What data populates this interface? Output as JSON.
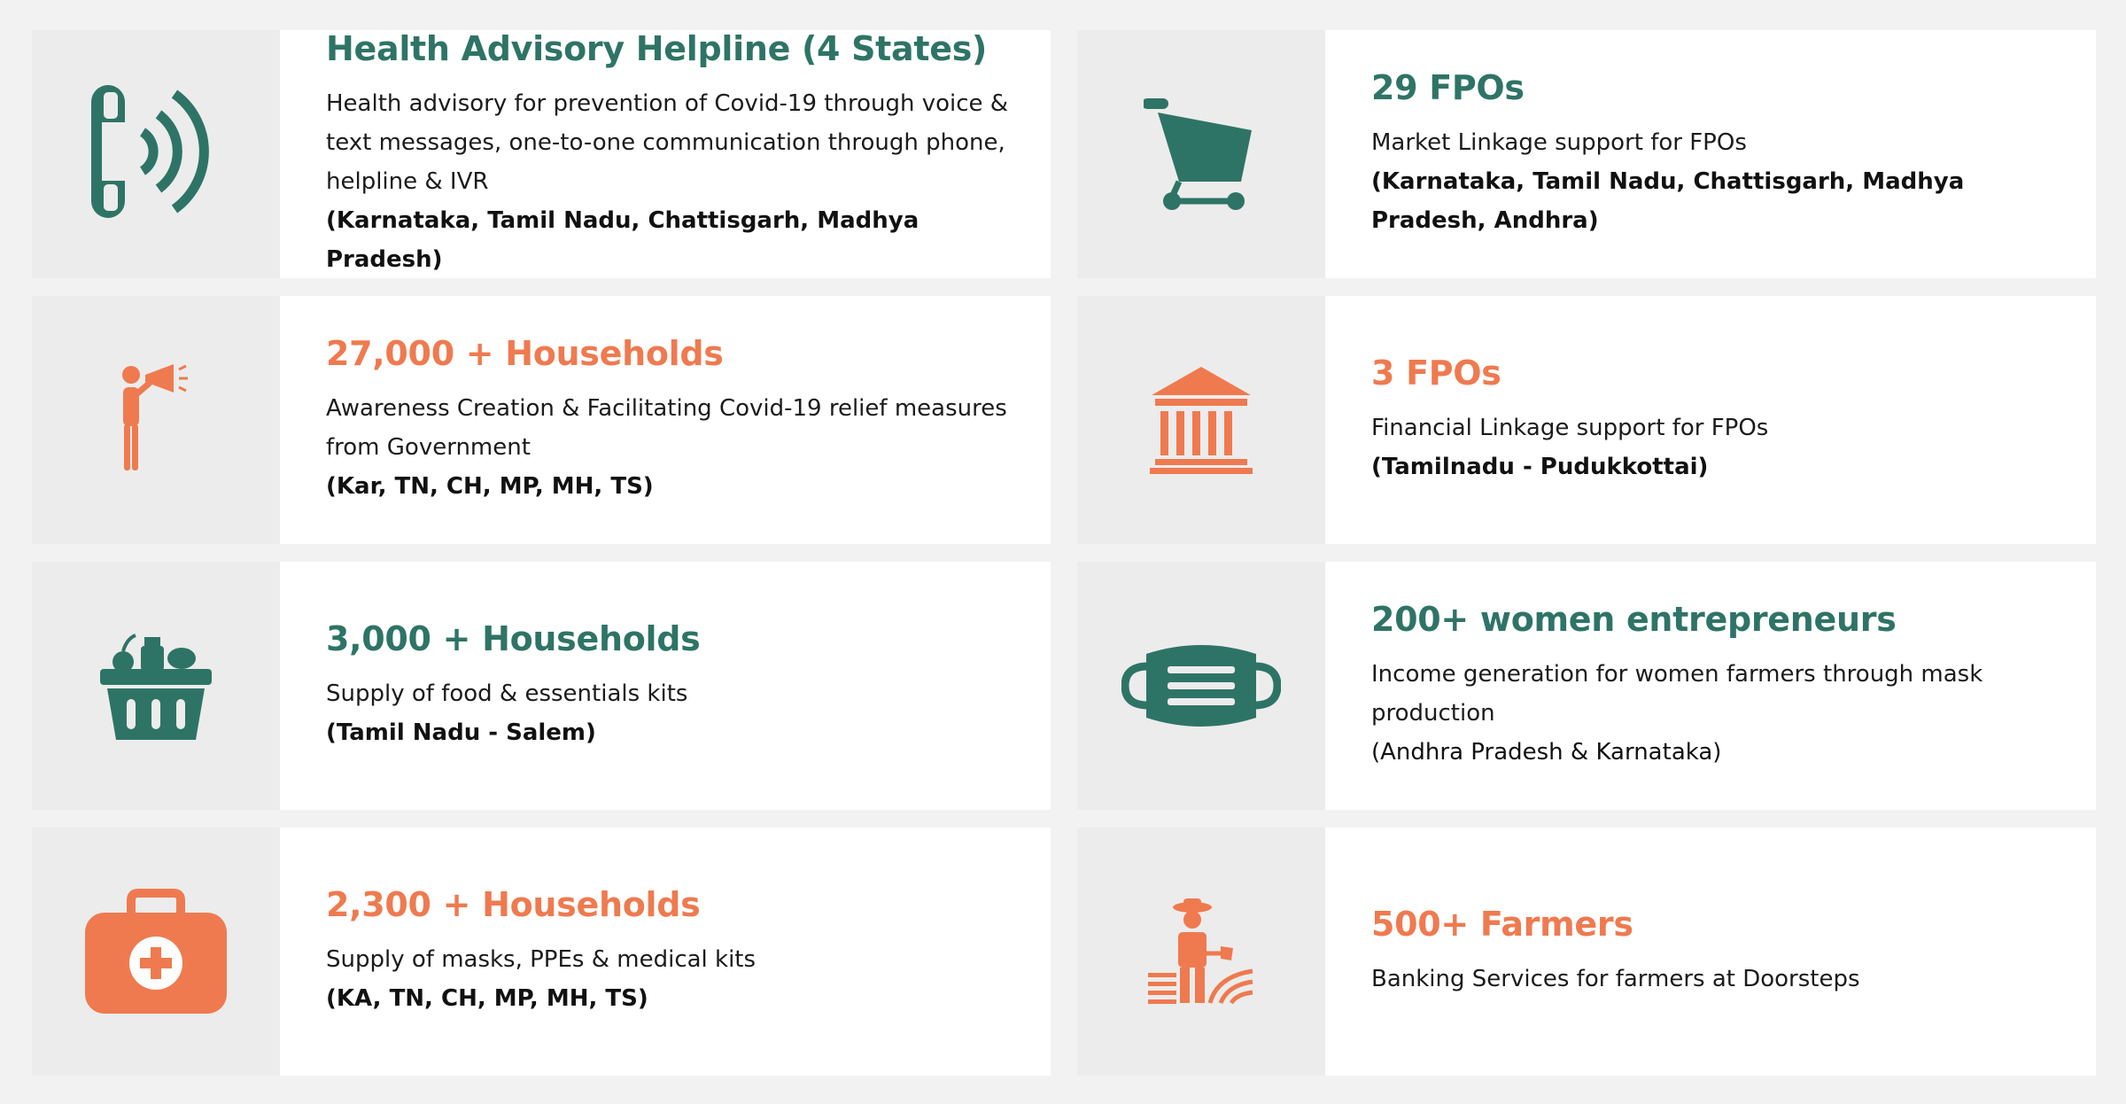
{
  "colors": {
    "green": "#2e7466",
    "orange": "#ef7a4f",
    "icon_bg": "#ececec",
    "page_bg": "#f2f2f2"
  },
  "cards": [
    {
      "icon": "phone-helpline-icon",
      "title": "Health Advisory Helpline (4 States)",
      "description": "Health advisory for prevention of Covid-19 through voice & text messages, one-to-one communication through phone, helpline & IVR",
      "region": "(Karnataka, Tamil Nadu, Chattisgarh, Madhya Pradesh)"
    },
    {
      "icon": "shopping-cart-icon",
      "title": "29 FPOs",
      "description": "Market Linkage support for FPOs",
      "region": "(Karnataka, Tamil Nadu, Chattisgarh, Madhya Pradesh, Andhra)"
    },
    {
      "icon": "megaphone-person-icon",
      "title": "27,000 + Households",
      "description": "Awareness Creation & Facilitating Covid-19 relief measures from Government",
      "region": "(Kar, TN, CH, MP, MH, TS)"
    },
    {
      "icon": "bank-building-icon",
      "title": "3 FPOs",
      "description": "Financial Linkage support for FPOs",
      "region": "(Tamilnadu - Pudukkottai)"
    },
    {
      "icon": "food-basket-icon",
      "title": "3,000 + Households",
      "description": "Supply of food & essentials kits",
      "region": "(Tamil Nadu - Salem)"
    },
    {
      "icon": "face-mask-icon",
      "title": "200+ women entrepreneurs",
      "description": "Income generation for women farmers through mask production",
      "region": "(Andhra Pradesh & Karnataka)"
    },
    {
      "icon": "medical-kit-icon",
      "title": "2,300 + Households",
      "description": "Supply of masks, PPEs & medical kits",
      "region": "(KA, TN, CH, MP, MH, TS)"
    },
    {
      "icon": "farmer-icon",
      "title": "500+ Farmers",
      "description": "Banking Services for farmers at Doorsteps",
      "region": ""
    }
  ]
}
